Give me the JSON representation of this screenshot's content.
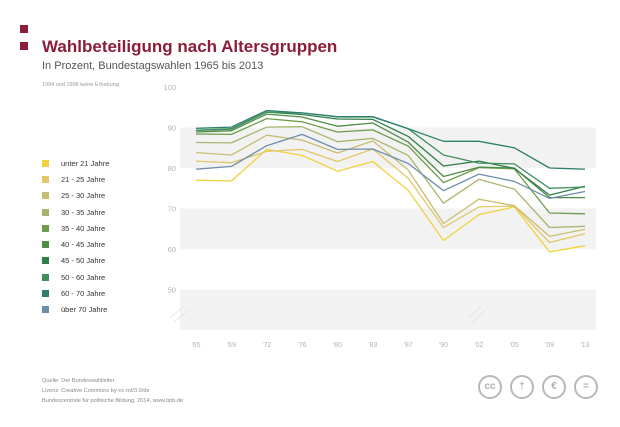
{
  "header": {
    "title": "Wahlbeteiligung nach Altersgruppen",
    "subtitle": "In Prozent, Bundestagswahlen 1965 bis 2013",
    "note": "1994 und 1998 keine Erhebung"
  },
  "footer": {
    "source": "Quelle: Der Bundeswahlleiter",
    "license": "Lizenz: Creative Commons by-nc-nd/3.0/de",
    "publisher": "Bundeszentrale für politische Bildung, 2014, www.bpb.de"
  },
  "license_icons": [
    {
      "name": "cc-icon",
      "glyph": "cc"
    },
    {
      "name": "by-icon",
      "glyph": "†"
    },
    {
      "name": "nc-icon",
      "glyph": "€"
    },
    {
      "name": "nd-icon",
      "glyph": "="
    }
  ],
  "colors": {
    "accent": "#8c1d3a",
    "band": "#f2f2f2",
    "axis_text": "#b3b3b3"
  },
  "chart_data": {
    "type": "line",
    "categories": [
      "'65",
      "'69",
      "'72",
      "'76",
      "'80",
      "'83",
      "'87",
      "'90",
      "'02",
      "'05",
      "'09",
      "'13"
    ],
    "ylim": [
      40,
      100
    ],
    "yticks": [
      50,
      60,
      70,
      80,
      90,
      100
    ],
    "grid_bands": [
      [
        60,
        70
      ],
      [
        80,
        90
      ],
      [
        40,
        50
      ]
    ],
    "legend_position": "left",
    "series": [
      {
        "name": "unter 21 Jahre",
        "color": "#f2d13f",
        "values": [
          77,
          76.8,
          84.6,
          83.1,
          79.2,
          81.6,
          74.5,
          62.1,
          68.5,
          70.4,
          59.3,
          60.8
        ]
      },
      {
        "name": "21 - 25 Jahre",
        "color": "#e2c66a",
        "values": [
          81.7,
          81.3,
          84.1,
          84.6,
          81.6,
          84.7,
          77.5,
          65.3,
          70.4,
          70.6,
          61.6,
          63.8
        ]
      },
      {
        "name": "25 - 30 Jahre",
        "color": "#c9bd73",
        "values": [
          83.8,
          83.2,
          88.1,
          86.9,
          83.7,
          86.7,
          79.5,
          66.3,
          72.3,
          70.7,
          63.1,
          64.9
        ]
      },
      {
        "name": "30 - 35 Jahre",
        "color": "#a6b56d",
        "values": [
          86.3,
          86.2,
          90.1,
          90.2,
          86.5,
          87.3,
          83.1,
          71.3,
          77.2,
          74.8,
          65.3,
          65.6
        ]
      },
      {
        "name": "35 - 40 Jahre",
        "color": "#6f9c4b",
        "values": [
          88.4,
          88.3,
          92.2,
          91.4,
          88.9,
          89.4,
          85.4,
          76.4,
          80.1,
          79.8,
          68.9,
          68.7
        ]
      },
      {
        "name": "40 - 45 Jahre",
        "color": "#4f8c45",
        "values": [
          88.9,
          89.2,
          93.3,
          92.6,
          90.3,
          91.1,
          86.4,
          77.9,
          80.2,
          80.0,
          72.7,
          72.7
        ]
      },
      {
        "name": "45 - 50 Jahre",
        "color": "#2f7f48",
        "values": [
          89.3,
          89.6,
          93.8,
          93.2,
          92.1,
          92.0,
          87.8,
          80.5,
          81.7,
          79.9,
          73.3,
          75.5
        ]
      },
      {
        "name": "50 - 60 Jahre",
        "color": "#3f8f5f",
        "values": [
          89.3,
          89.7,
          93.8,
          93.6,
          92.6,
          92.6,
          89.7,
          83.2,
          81.2,
          81.0,
          75.0,
          75.3
        ]
      },
      {
        "name": "60 - 70 Jahre",
        "color": "#2e7f6e",
        "values": [
          89.8,
          90.1,
          94.2,
          93.6,
          92.7,
          92.7,
          89.7,
          86.6,
          86.6,
          85.0,
          80.0,
          79.7
        ]
      },
      {
        "name": "über 70 Jahre",
        "color": "#6e8eaa",
        "values": [
          79.7,
          80.4,
          85.5,
          88.3,
          84.6,
          84.7,
          81.1,
          74.4,
          78.5,
          76.7,
          72.5,
          74.2
        ]
      }
    ]
  }
}
